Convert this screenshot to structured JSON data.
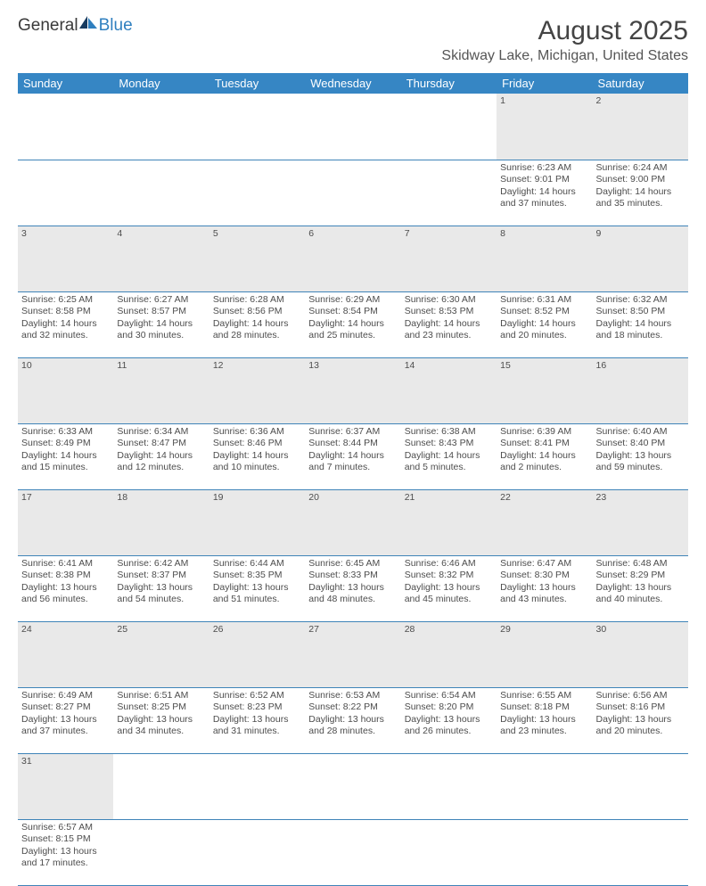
{
  "logo": {
    "text1": "General",
    "text2": "Blue"
  },
  "title": "August 2025",
  "location": "Skidway Lake, Michigan, United States",
  "colors": {
    "header_bg": "#3686c4",
    "header_fg": "#ffffff",
    "daynum_bg": "#e9e9e9",
    "rule": "#3f84b8",
    "text": "#4d4d4d"
  },
  "weekdays": [
    "Sunday",
    "Monday",
    "Tuesday",
    "Wednesday",
    "Thursday",
    "Friday",
    "Saturday"
  ],
  "weeks": [
    [
      null,
      null,
      null,
      null,
      null,
      {
        "n": "1",
        "sunrise": "Sunrise: 6:23 AM",
        "sunset": "Sunset: 9:01 PM",
        "day1": "Daylight: 14 hours",
        "day2": "and 37 minutes."
      },
      {
        "n": "2",
        "sunrise": "Sunrise: 6:24 AM",
        "sunset": "Sunset: 9:00 PM",
        "day1": "Daylight: 14 hours",
        "day2": "and 35 minutes."
      }
    ],
    [
      {
        "n": "3",
        "sunrise": "Sunrise: 6:25 AM",
        "sunset": "Sunset: 8:58 PM",
        "day1": "Daylight: 14 hours",
        "day2": "and 32 minutes."
      },
      {
        "n": "4",
        "sunrise": "Sunrise: 6:27 AM",
        "sunset": "Sunset: 8:57 PM",
        "day1": "Daylight: 14 hours",
        "day2": "and 30 minutes."
      },
      {
        "n": "5",
        "sunrise": "Sunrise: 6:28 AM",
        "sunset": "Sunset: 8:56 PM",
        "day1": "Daylight: 14 hours",
        "day2": "and 28 minutes."
      },
      {
        "n": "6",
        "sunrise": "Sunrise: 6:29 AM",
        "sunset": "Sunset: 8:54 PM",
        "day1": "Daylight: 14 hours",
        "day2": "and 25 minutes."
      },
      {
        "n": "7",
        "sunrise": "Sunrise: 6:30 AM",
        "sunset": "Sunset: 8:53 PM",
        "day1": "Daylight: 14 hours",
        "day2": "and 23 minutes."
      },
      {
        "n": "8",
        "sunrise": "Sunrise: 6:31 AM",
        "sunset": "Sunset: 8:52 PM",
        "day1": "Daylight: 14 hours",
        "day2": "and 20 minutes."
      },
      {
        "n": "9",
        "sunrise": "Sunrise: 6:32 AM",
        "sunset": "Sunset: 8:50 PM",
        "day1": "Daylight: 14 hours",
        "day2": "and 18 minutes."
      }
    ],
    [
      {
        "n": "10",
        "sunrise": "Sunrise: 6:33 AM",
        "sunset": "Sunset: 8:49 PM",
        "day1": "Daylight: 14 hours",
        "day2": "and 15 minutes."
      },
      {
        "n": "11",
        "sunrise": "Sunrise: 6:34 AM",
        "sunset": "Sunset: 8:47 PM",
        "day1": "Daylight: 14 hours",
        "day2": "and 12 minutes."
      },
      {
        "n": "12",
        "sunrise": "Sunrise: 6:36 AM",
        "sunset": "Sunset: 8:46 PM",
        "day1": "Daylight: 14 hours",
        "day2": "and 10 minutes."
      },
      {
        "n": "13",
        "sunrise": "Sunrise: 6:37 AM",
        "sunset": "Sunset: 8:44 PM",
        "day1": "Daylight: 14 hours",
        "day2": "and 7 minutes."
      },
      {
        "n": "14",
        "sunrise": "Sunrise: 6:38 AM",
        "sunset": "Sunset: 8:43 PM",
        "day1": "Daylight: 14 hours",
        "day2": "and 5 minutes."
      },
      {
        "n": "15",
        "sunrise": "Sunrise: 6:39 AM",
        "sunset": "Sunset: 8:41 PM",
        "day1": "Daylight: 14 hours",
        "day2": "and 2 minutes."
      },
      {
        "n": "16",
        "sunrise": "Sunrise: 6:40 AM",
        "sunset": "Sunset: 8:40 PM",
        "day1": "Daylight: 13 hours",
        "day2": "and 59 minutes."
      }
    ],
    [
      {
        "n": "17",
        "sunrise": "Sunrise: 6:41 AM",
        "sunset": "Sunset: 8:38 PM",
        "day1": "Daylight: 13 hours",
        "day2": "and 56 minutes."
      },
      {
        "n": "18",
        "sunrise": "Sunrise: 6:42 AM",
        "sunset": "Sunset: 8:37 PM",
        "day1": "Daylight: 13 hours",
        "day2": "and 54 minutes."
      },
      {
        "n": "19",
        "sunrise": "Sunrise: 6:44 AM",
        "sunset": "Sunset: 8:35 PM",
        "day1": "Daylight: 13 hours",
        "day2": "and 51 minutes."
      },
      {
        "n": "20",
        "sunrise": "Sunrise: 6:45 AM",
        "sunset": "Sunset: 8:33 PM",
        "day1": "Daylight: 13 hours",
        "day2": "and 48 minutes."
      },
      {
        "n": "21",
        "sunrise": "Sunrise: 6:46 AM",
        "sunset": "Sunset: 8:32 PM",
        "day1": "Daylight: 13 hours",
        "day2": "and 45 minutes."
      },
      {
        "n": "22",
        "sunrise": "Sunrise: 6:47 AM",
        "sunset": "Sunset: 8:30 PM",
        "day1": "Daylight: 13 hours",
        "day2": "and 43 minutes."
      },
      {
        "n": "23",
        "sunrise": "Sunrise: 6:48 AM",
        "sunset": "Sunset: 8:29 PM",
        "day1": "Daylight: 13 hours",
        "day2": "and 40 minutes."
      }
    ],
    [
      {
        "n": "24",
        "sunrise": "Sunrise: 6:49 AM",
        "sunset": "Sunset: 8:27 PM",
        "day1": "Daylight: 13 hours",
        "day2": "and 37 minutes."
      },
      {
        "n": "25",
        "sunrise": "Sunrise: 6:51 AM",
        "sunset": "Sunset: 8:25 PM",
        "day1": "Daylight: 13 hours",
        "day2": "and 34 minutes."
      },
      {
        "n": "26",
        "sunrise": "Sunrise: 6:52 AM",
        "sunset": "Sunset: 8:23 PM",
        "day1": "Daylight: 13 hours",
        "day2": "and 31 minutes."
      },
      {
        "n": "27",
        "sunrise": "Sunrise: 6:53 AM",
        "sunset": "Sunset: 8:22 PM",
        "day1": "Daylight: 13 hours",
        "day2": "and 28 minutes."
      },
      {
        "n": "28",
        "sunrise": "Sunrise: 6:54 AM",
        "sunset": "Sunset: 8:20 PM",
        "day1": "Daylight: 13 hours",
        "day2": "and 26 minutes."
      },
      {
        "n": "29",
        "sunrise": "Sunrise: 6:55 AM",
        "sunset": "Sunset: 8:18 PM",
        "day1": "Daylight: 13 hours",
        "day2": "and 23 minutes."
      },
      {
        "n": "30",
        "sunrise": "Sunrise: 6:56 AM",
        "sunset": "Sunset: 8:16 PM",
        "day1": "Daylight: 13 hours",
        "day2": "and 20 minutes."
      }
    ],
    [
      {
        "n": "31",
        "sunrise": "Sunrise: 6:57 AM",
        "sunset": "Sunset: 8:15 PM",
        "day1": "Daylight: 13 hours",
        "day2": "and 17 minutes."
      },
      null,
      null,
      null,
      null,
      null,
      null
    ]
  ]
}
